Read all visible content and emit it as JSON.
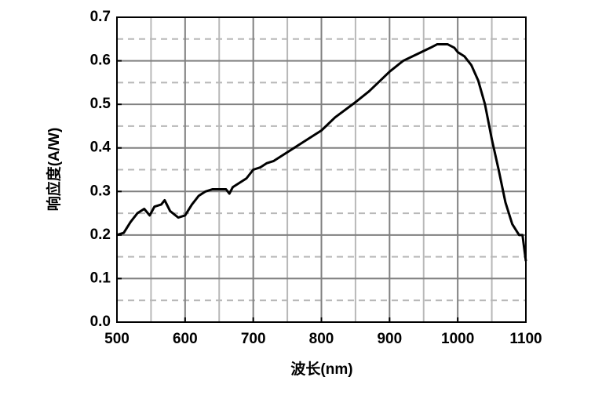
{
  "chart_data": {
    "type": "line",
    "x_label": "波长(nm)",
    "y_label": "响应度(A/W)",
    "xlim": [
      500,
      1100
    ],
    "ylim": [
      0,
      0.7
    ],
    "xticks": [
      500,
      600,
      700,
      800,
      900,
      1000,
      1100
    ],
    "yticks": [
      {
        "value": 0,
        "label": "0.0"
      },
      0.1,
      0.2,
      0.3,
      0.4,
      0.5,
      0.6,
      0.7
    ],
    "xminor": [
      550,
      650,
      750,
      850,
      950,
      1050
    ],
    "yminor": [
      0.05,
      0.15,
      0.25,
      0.35,
      0.45,
      0.55,
      0.65
    ],
    "grid": true,
    "series": [
      {
        "color": "#000000",
        "x": [
          500,
          510,
          520,
          530,
          540,
          548,
          555,
          565,
          570,
          578,
          590,
          600,
          610,
          620,
          630,
          640,
          660,
          665,
          670,
          690,
          700,
          710,
          720,
          730,
          750,
          770,
          790,
          800,
          820,
          850,
          870,
          890,
          900,
          920,
          940,
          960,
          970,
          985,
          995,
          1000,
          1010,
          1020,
          1030,
          1040,
          1050,
          1060,
          1070,
          1080,
          1090,
          1095,
          1100
        ],
        "values": [
          0.2,
          0.205,
          0.23,
          0.25,
          0.26,
          0.245,
          0.265,
          0.27,
          0.28,
          0.255,
          0.24,
          0.245,
          0.27,
          0.29,
          0.3,
          0.305,
          0.305,
          0.295,
          0.31,
          0.33,
          0.35,
          0.355,
          0.365,
          0.37,
          0.39,
          0.41,
          0.43,
          0.44,
          0.47,
          0.505,
          0.53,
          0.56,
          0.575,
          0.6,
          0.615,
          0.63,
          0.638,
          0.638,
          0.63,
          0.62,
          0.61,
          0.59,
          0.555,
          0.5,
          0.42,
          0.35,
          0.275,
          0.225,
          0.2,
          0.2,
          0.14
        ]
      }
    ]
  }
}
